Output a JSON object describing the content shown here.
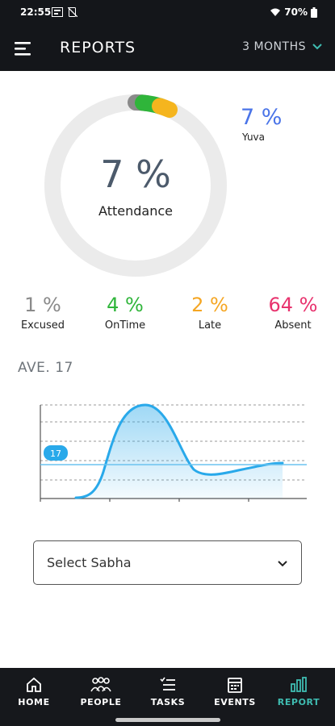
{
  "status_bar": {
    "time": "22:55",
    "battery": "70%"
  },
  "header": {
    "title": "REPORTS",
    "range_label": "3 MONTHS"
  },
  "attendance": {
    "percent": "7 %",
    "label": "Attendance"
  },
  "person": {
    "percent": "7 %",
    "name": "Yuva"
  },
  "stats": [
    {
      "value": "1 %",
      "label": "Excused",
      "color": "#8a8a8a"
    },
    {
      "value": "4 %",
      "label": "OnTime",
      "color": "#2fb53a"
    },
    {
      "value": "2 %",
      "label": "Late",
      "color": "#f5a623"
    },
    {
      "value": "64 %",
      "label": "Absent",
      "color": "#e8336e"
    }
  ],
  "average": {
    "label": "AVE. 17",
    "badge": "17"
  },
  "select": {
    "label": "Select Sabha"
  },
  "nav": [
    {
      "label": "HOME",
      "icon": "home-icon",
      "active": false
    },
    {
      "label": "PEOPLE",
      "icon": "people-icon",
      "active": false
    },
    {
      "label": "TASKS",
      "icon": "tasks-icon",
      "active": false
    },
    {
      "label": "EVENTS",
      "icon": "events-icon",
      "active": false
    },
    {
      "label": "REPORT",
      "icon": "report-icon",
      "active": true
    }
  ],
  "colors": {
    "accent": "#3fbcb1",
    "line": "#29a9ea",
    "bar_bg": "#16181c"
  }
}
